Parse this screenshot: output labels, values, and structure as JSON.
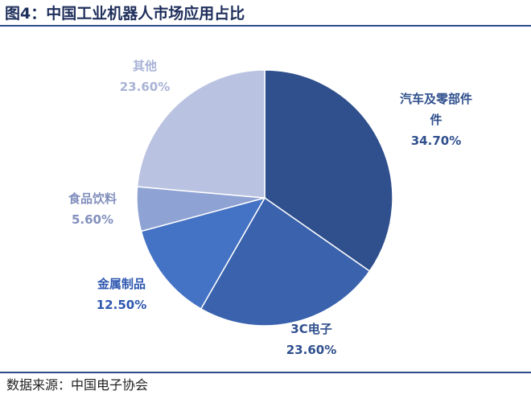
{
  "header": {
    "title": "图4：中国工业机器人市场应用占比"
  },
  "footer": {
    "source": "数据来源：中国电子协会"
  },
  "colors": {
    "rule": "#2e4a8a"
  },
  "chart_data": {
    "type": "pie",
    "title": "",
    "slices": [
      {
        "name": "汽车及零部件",
        "name_lines": [
          "汽车及零部件",
          "件"
        ],
        "value": 34.7,
        "label": "34.70%",
        "color": "#2f4f8d",
        "label_color": "#2f4f8d"
      },
      {
        "name": "3C电子",
        "name_lines": [
          "3C电子"
        ],
        "value": 23.6,
        "label": "23.60%",
        "color": "#3a62ad",
        "label_color": "#2f4f8d"
      },
      {
        "name": "金属制品",
        "name_lines": [
          "金属制品"
        ],
        "value": 12.5,
        "label": "12.50%",
        "color": "#4472c4",
        "label_color": "#2f58b0"
      },
      {
        "name": "食品饮料",
        "name_lines": [
          "食品饮料"
        ],
        "value": 5.6,
        "label": "5.60%",
        "color": "#8fa2d4",
        "label_color": "#8390be"
      },
      {
        "name": "其他",
        "name_lines": [
          "其他"
        ],
        "value": 23.6,
        "label": "23.60%",
        "color": "#b9c2e0",
        "label_color": "#a9b3d6"
      }
    ]
  }
}
